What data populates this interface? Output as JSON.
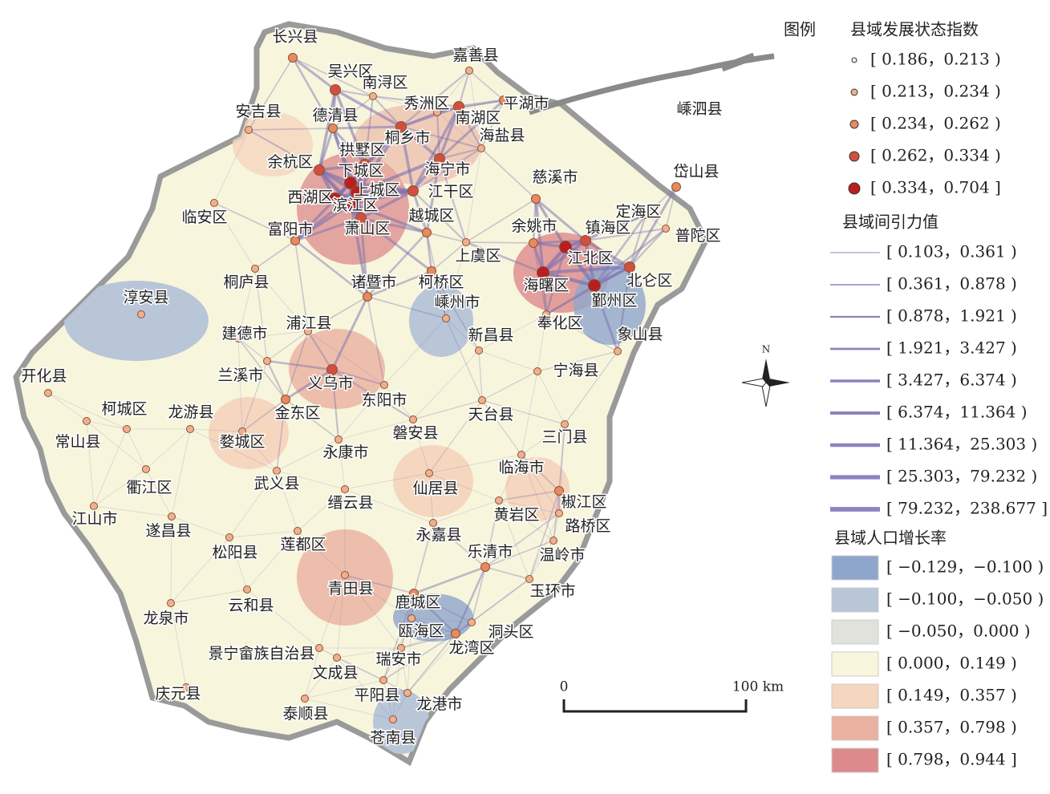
{
  "legend": {
    "title": "图例",
    "node_title": "县域发展状态指数",
    "node_classes": [
      "[ 0.186，0.213 )",
      "[ 0.213，0.234 )",
      "[ 0.234，0.262 )",
      "[ 0.262，0.334 )",
      "[ 0.334，0.704 ]"
    ],
    "edge_title": "县域间引力值",
    "edge_classes": [
      "[ 0.103，0.361 )",
      "[ 0.361，0.878 )",
      "[ 0.878，1.921 )",
      "[ 1.921，3.427 )",
      "[ 3.427，6.374 )",
      "[ 6.374，11.364 )",
      "[ 11.364，25.303 )",
      "[ 25.303，79.232 )",
      "[ 79.232，238.677 ]"
    ],
    "fill_title": "县域人口增长率",
    "fill_classes": [
      "[ −0.129，−0.100 )",
      "[ −0.100，−0.050 )",
      "[ −0.050，0.000 )",
      "[ 0.000，0.149 )",
      "[ 0.149，0.357 )",
      "[ 0.357，0.798 )",
      "[ 0.798，0.944 ]"
    ]
  },
  "scale": {
    "start": "0",
    "end": "100 km"
  },
  "north": "N",
  "places": [
    "长兴县",
    "吴兴区",
    "南浔区",
    "嘉善县",
    "秀洲区",
    "平湖市",
    "南湖区",
    "安吉县",
    "德清县",
    "嵊泗县",
    "海盐县",
    "桐乡市",
    "拱墅区",
    "余杭区",
    "下城区",
    "海宁市",
    "岱山县",
    "慈溪市",
    "上城区",
    "江干区",
    "西湖区",
    "滨江区",
    "临安区",
    "定海区",
    "越城区",
    "富阳市",
    "萧山区",
    "余姚市",
    "镇海区",
    "普陀区",
    "上虞区",
    "江北区",
    "北仑区",
    "桐庐县",
    "诸暨市",
    "柯桥区",
    "海曙区",
    "鄞州区",
    "淳安县",
    "嵊州市",
    "浦江县",
    "奉化区",
    "建德市",
    "新昌县",
    "象山县",
    "开化县",
    "兰溪市",
    "义乌市",
    "宁海县",
    "东阳市",
    "柯城区",
    "龙游县",
    "金东区",
    "天台县",
    "磐安县",
    "常山县",
    "婺城区",
    "三门县",
    "永康市",
    "临海市",
    "衢江区",
    "武义县",
    "仙居县",
    "缙云县",
    "椒江区",
    "江山市",
    "黄岩区",
    "遂昌县",
    "路桥区",
    "永嘉县",
    "莲都区",
    "松阳县",
    "乐清市",
    "温岭市",
    "玉环市",
    "青田县",
    "鹿城区",
    "云和县",
    "龙泉市",
    "瓯海区",
    "洞头区",
    "龙湾区",
    "景宁畲族自治县",
    "瑞安市",
    "文成县",
    "庆元县",
    "平阳县",
    "龙港市",
    "泰顺县",
    "苍南县"
  ]
}
